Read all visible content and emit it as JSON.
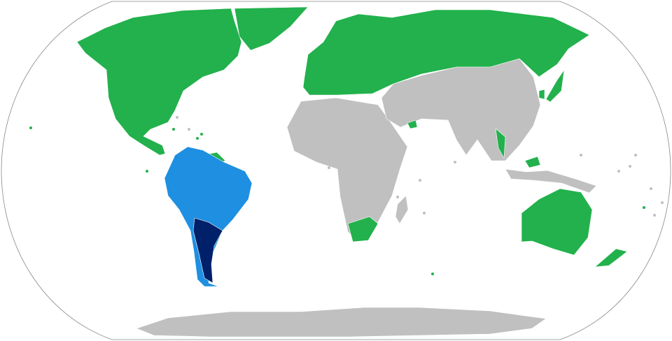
{
  "map": {
    "projection": "robinson-world",
    "colors": {
      "green": "#22b14c",
      "light_blue": "#1e8fe1",
      "dark_blue": "#002169",
      "gray": "#c0c0c0",
      "ocean": "#ffffff",
      "frame": "#888888"
    },
    "regions": [
      {
        "name": "north-america",
        "category": "green"
      },
      {
        "name": "greenland",
        "category": "green"
      },
      {
        "name": "guianas",
        "category": "green"
      },
      {
        "name": "south-america",
        "category": "light_blue"
      },
      {
        "name": "argentina",
        "category": "dark_blue"
      },
      {
        "name": "europe-russia",
        "category": "green"
      },
      {
        "name": "africa",
        "category": "gray"
      },
      {
        "name": "south-africa",
        "category": "green"
      },
      {
        "name": "asia",
        "category": "gray"
      },
      {
        "name": "uae",
        "category": "green"
      },
      {
        "name": "thailand",
        "category": "green"
      },
      {
        "name": "malaysia",
        "category": "green"
      },
      {
        "name": "japan",
        "category": "green"
      },
      {
        "name": "korea",
        "category": "green"
      },
      {
        "name": "southeast-asia-islands",
        "category": "gray"
      },
      {
        "name": "madagascar",
        "category": "gray"
      },
      {
        "name": "australia",
        "category": "green"
      },
      {
        "name": "new-zealand",
        "category": "green"
      },
      {
        "name": "antarctica",
        "category": "gray"
      }
    ]
  }
}
